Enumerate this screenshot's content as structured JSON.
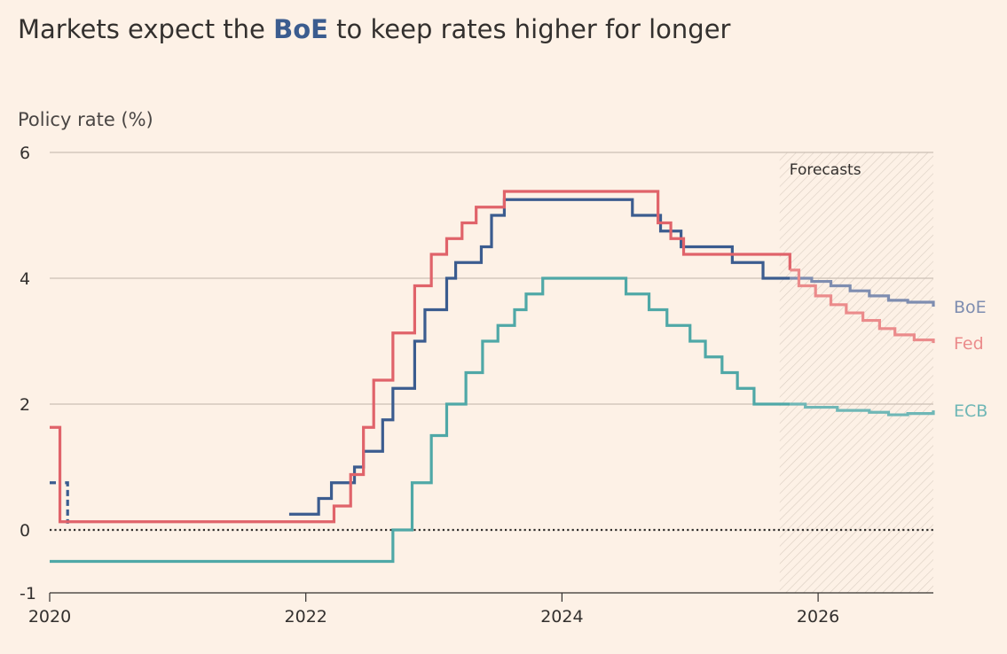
{
  "title": {
    "prefix": "Markets expect the ",
    "highlight": "BoE",
    "suffix": " to keep rates higher for longer"
  },
  "chart_data": {
    "type": "line",
    "title": "Markets expect the BoE to keep rates higher for longer",
    "ylabel": "Policy rate (%)",
    "xlabel": "",
    "xlim": [
      2020.0,
      2026.9
    ],
    "ylim": [
      -1,
      6
    ],
    "y_ticks": [
      6,
      4,
      2,
      0
    ],
    "y_tick_labels": [
      "6",
      "4",
      "2",
      "0"
    ],
    "y_min_label": "-1",
    "x_ticks": [
      2020,
      2022,
      2024,
      2026
    ],
    "x_tick_labels": [
      "2020",
      "2022",
      "2024",
      "2026"
    ],
    "forecast_start": 2025.7,
    "forecast_label": "Forecasts",
    "zero_line": "dotted",
    "series": [
      {
        "name": "BoE",
        "color": "#3b5c8f",
        "forecast_color": "#7e8db0",
        "step": true,
        "segments": [
          [
            [
              2020.0,
              0.75
            ],
            [
              2020.08,
              0.75
            ]
          ],
          [
            [
              2020.12,
              0.75
            ],
            [
              2020.14,
              0.1
            ]
          ]
        ],
        "points": [
          [
            2021.87,
            0.25
          ],
          [
            2021.95,
            0.25
          ],
          [
            2022.1,
            0.5
          ],
          [
            2022.2,
            0.75
          ],
          [
            2022.3,
            0.75
          ],
          [
            2022.38,
            1.0
          ],
          [
            2022.45,
            1.25
          ],
          [
            2022.6,
            1.75
          ],
          [
            2022.68,
            2.25
          ],
          [
            2022.85,
            3.0
          ],
          [
            2022.93,
            3.5
          ],
          [
            2023.1,
            4.0
          ],
          [
            2023.17,
            4.25
          ],
          [
            2023.37,
            4.5
          ],
          [
            2023.45,
            5.0
          ],
          [
            2023.55,
            5.25
          ],
          [
            2024.55,
            5.0
          ],
          [
            2024.63,
            5.0
          ],
          [
            2024.77,
            4.75
          ],
          [
            2024.93,
            4.5
          ],
          [
            2025.33,
            4.25
          ],
          [
            2025.57,
            4.0
          ],
          [
            2025.78,
            4.0
          ]
        ],
        "forecast": [
          [
            2025.78,
            4.0
          ],
          [
            2025.95,
            3.95
          ],
          [
            2026.1,
            3.88
          ],
          [
            2026.25,
            3.8
          ],
          [
            2026.4,
            3.72
          ],
          [
            2026.55,
            3.65
          ],
          [
            2026.7,
            3.62
          ],
          [
            2026.9,
            3.55
          ]
        ]
      },
      {
        "name": "Fed",
        "color": "#e0636a",
        "forecast_color": "#eb8b8b",
        "step": true,
        "points": [
          [
            2020.0,
            1.63
          ],
          [
            2020.08,
            1.63
          ],
          [
            2020.08,
            0.13
          ],
          [
            2022.08,
            0.13
          ],
          [
            2022.22,
            0.38
          ],
          [
            2022.35,
            0.88
          ],
          [
            2022.45,
            1.63
          ],
          [
            2022.53,
            2.38
          ],
          [
            2022.68,
            3.13
          ],
          [
            2022.85,
            3.88
          ],
          [
            2022.98,
            4.38
          ],
          [
            2023.1,
            4.63
          ],
          [
            2023.22,
            4.88
          ],
          [
            2023.33,
            5.13
          ],
          [
            2023.55,
            5.38
          ],
          [
            2024.63,
            5.38
          ],
          [
            2024.75,
            4.88
          ],
          [
            2024.85,
            4.63
          ],
          [
            2024.95,
            4.38
          ],
          [
            2025.7,
            4.38
          ],
          [
            2025.78,
            4.13
          ]
        ],
        "forecast": [
          [
            2025.78,
            4.13
          ],
          [
            2025.85,
            3.88
          ],
          [
            2025.98,
            3.72
          ],
          [
            2026.1,
            3.58
          ],
          [
            2026.22,
            3.45
          ],
          [
            2026.35,
            3.33
          ],
          [
            2026.48,
            3.2
          ],
          [
            2026.6,
            3.1
          ],
          [
            2026.75,
            3.02
          ],
          [
            2026.9,
            2.97
          ]
        ]
      },
      {
        "name": "ECB",
        "color": "#4fa8a7",
        "forecast_color": "#6fb7b6",
        "step": true,
        "points": [
          [
            2020.0,
            -0.5
          ],
          [
            2022.53,
            -0.5
          ],
          [
            2022.68,
            0.0
          ],
          [
            2022.83,
            0.75
          ],
          [
            2022.98,
            1.5
          ],
          [
            2023.1,
            2.0
          ],
          [
            2023.25,
            2.5
          ],
          [
            2023.38,
            3.0
          ],
          [
            2023.5,
            3.25
          ],
          [
            2023.63,
            3.5
          ],
          [
            2023.72,
            3.75
          ],
          [
            2023.85,
            4.0
          ],
          [
            2024.35,
            4.0
          ],
          [
            2024.5,
            3.75
          ],
          [
            2024.68,
            3.5
          ],
          [
            2024.82,
            3.25
          ],
          [
            2025.0,
            3.0
          ],
          [
            2025.12,
            2.75
          ],
          [
            2025.25,
            2.5
          ],
          [
            2025.37,
            2.25
          ],
          [
            2025.5,
            2.0
          ],
          [
            2025.78,
            2.0
          ]
        ],
        "forecast": [
          [
            2025.78,
            2.0
          ],
          [
            2025.9,
            1.95
          ],
          [
            2026.15,
            1.9
          ],
          [
            2026.4,
            1.87
          ],
          [
            2026.55,
            1.83
          ],
          [
            2026.7,
            1.85
          ],
          [
            2026.9,
            1.9
          ]
        ]
      }
    ],
    "legend": [
      {
        "name": "BoE",
        "color": "#7e8db0",
        "y": 3.55
      },
      {
        "name": "Fed",
        "color": "#eb8b8b",
        "y": 2.97
      },
      {
        "name": "ECB",
        "color": "#6fb7b6",
        "y": 1.9
      }
    ]
  }
}
